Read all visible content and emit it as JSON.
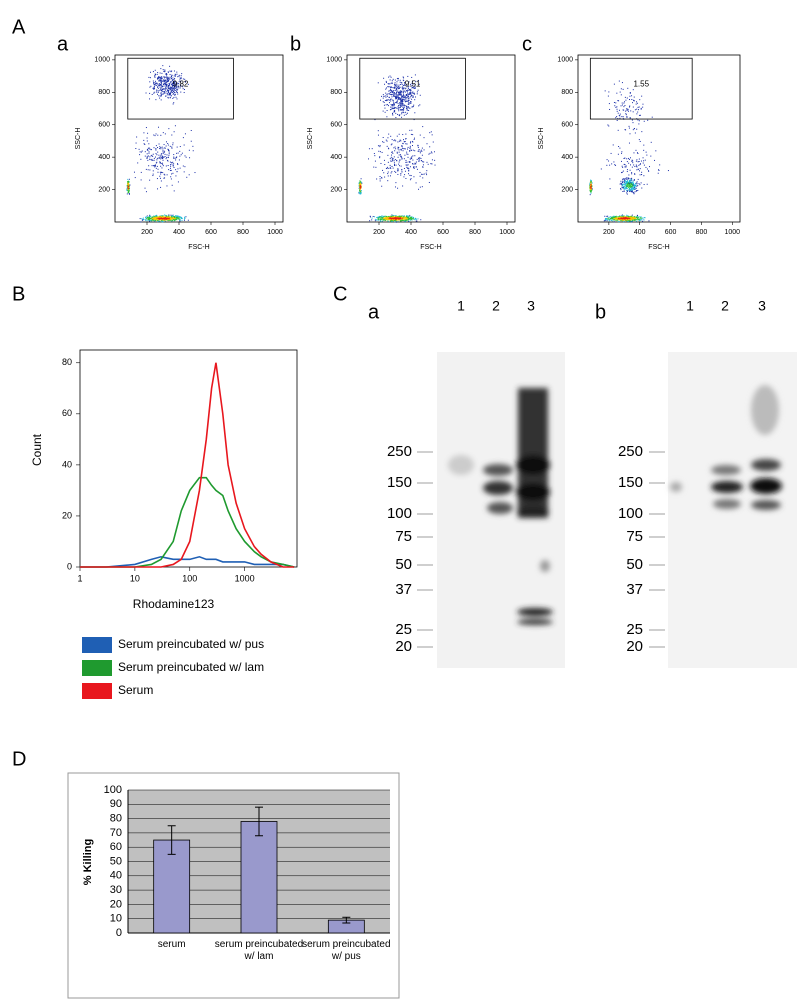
{
  "panel_labels": [
    "A",
    "B",
    "C",
    "D"
  ],
  "chart_data": [
    {
      "type": "scatter",
      "subtitle": "a",
      "x_label": "FSC-H",
      "y_label": "SSC-H",
      "xlim": [
        0,
        1050
      ],
      "ylim": [
        0,
        1030
      ],
      "xticks": [
        200,
        400,
        600,
        800,
        1000
      ],
      "yticks": [
        200,
        400,
        600,
        800,
        1000
      ],
      "gate": {
        "label": "9.82",
        "x": [
          80,
          740
        ],
        "y": [
          635,
          1010
        ]
      }
    },
    {
      "type": "scatter",
      "subtitle": "b",
      "x_label": "FSC-H",
      "y_label": "SSC-H",
      "xlim": [
        0,
        1050
      ],
      "ylim": [
        0,
        1030
      ],
      "xticks": [
        200,
        400,
        600,
        800,
        1000
      ],
      "yticks": [
        200,
        400,
        600,
        800,
        1000
      ],
      "gate": {
        "label": "9.51",
        "x": [
          80,
          740
        ],
        "y": [
          635,
          1010
        ]
      }
    },
    {
      "type": "scatter",
      "subtitle": "c",
      "x_label": "FSC-H",
      "y_label": "SSC-H",
      "xlim": [
        0,
        1050
      ],
      "ylim": [
        0,
        1030
      ],
      "xticks": [
        200,
        400,
        600,
        800,
        1000
      ],
      "yticks": [
        200,
        400,
        600,
        800,
        1000
      ],
      "gate": {
        "label": "1.55",
        "x": [
          80,
          740
        ],
        "y": [
          635,
          1010
        ]
      }
    },
    {
      "type": "line",
      "x_label": "Rhodamine123",
      "y_label": "Count",
      "log_x": true,
      "legend": "bottom",
      "xlim": [
        1,
        9000
      ],
      "ylim": [
        0,
        85
      ],
      "xticks": [
        1,
        10,
        100,
        1000
      ],
      "yticks": [
        0,
        20,
        40,
        60,
        80
      ],
      "x": [
        1,
        3,
        10,
        20,
        30,
        50,
        70,
        100,
        150,
        200,
        250,
        300,
        400,
        500,
        700,
        1000,
        1500,
        2000,
        3000,
        5000,
        8000
      ],
      "series": [
        {
          "name": "Serum preincubated w/ pus",
          "color": "#1f5fb4",
          "values": [
            0,
            0,
            1,
            3,
            4,
            3,
            3,
            3,
            4,
            3,
            3,
            3,
            2,
            2,
            2,
            2,
            1,
            1,
            1,
            1,
            0
          ]
        },
        {
          "name": "Serum preincubated w/ lam",
          "color": "#1f9a2f",
          "values": [
            0,
            0,
            0,
            1,
            3,
            10,
            22,
            30,
            35,
            35,
            32,
            30,
            28,
            22,
            15,
            10,
            6,
            4,
            2,
            1,
            0
          ]
        },
        {
          "name": "Serum",
          "color": "#e8171e",
          "values": [
            0,
            0,
            0,
            0,
            0,
            1,
            3,
            10,
            30,
            50,
            70,
            80,
            60,
            40,
            25,
            15,
            8,
            5,
            2,
            0,
            0
          ]
        }
      ]
    },
    {
      "type": "bar",
      "y_label": "% Killing",
      "categories": [
        "serum",
        "serum preincubated w/ lam",
        "serum preincubated w/ pus"
      ],
      "values": [
        65,
        78,
        9
      ],
      "errors": [
        10,
        10,
        2
      ],
      "color": "#9999cc",
      "grid": true,
      "ylim": [
        0,
        100
      ],
      "yticks": [
        0,
        10,
        20,
        30,
        40,
        50,
        60,
        70,
        80,
        90,
        100
      ]
    }
  ],
  "blots": [
    {
      "label": "a",
      "lanes": [
        "1",
        "2",
        "3"
      ],
      "markers": [
        250,
        150,
        100,
        75,
        50,
        37,
        25,
        20
      ]
    },
    {
      "label": "b",
      "lanes": [
        "1",
        "2",
        "3"
      ],
      "markers": [
        250,
        150,
        100,
        75,
        50,
        37,
        25,
        20
      ]
    }
  ]
}
